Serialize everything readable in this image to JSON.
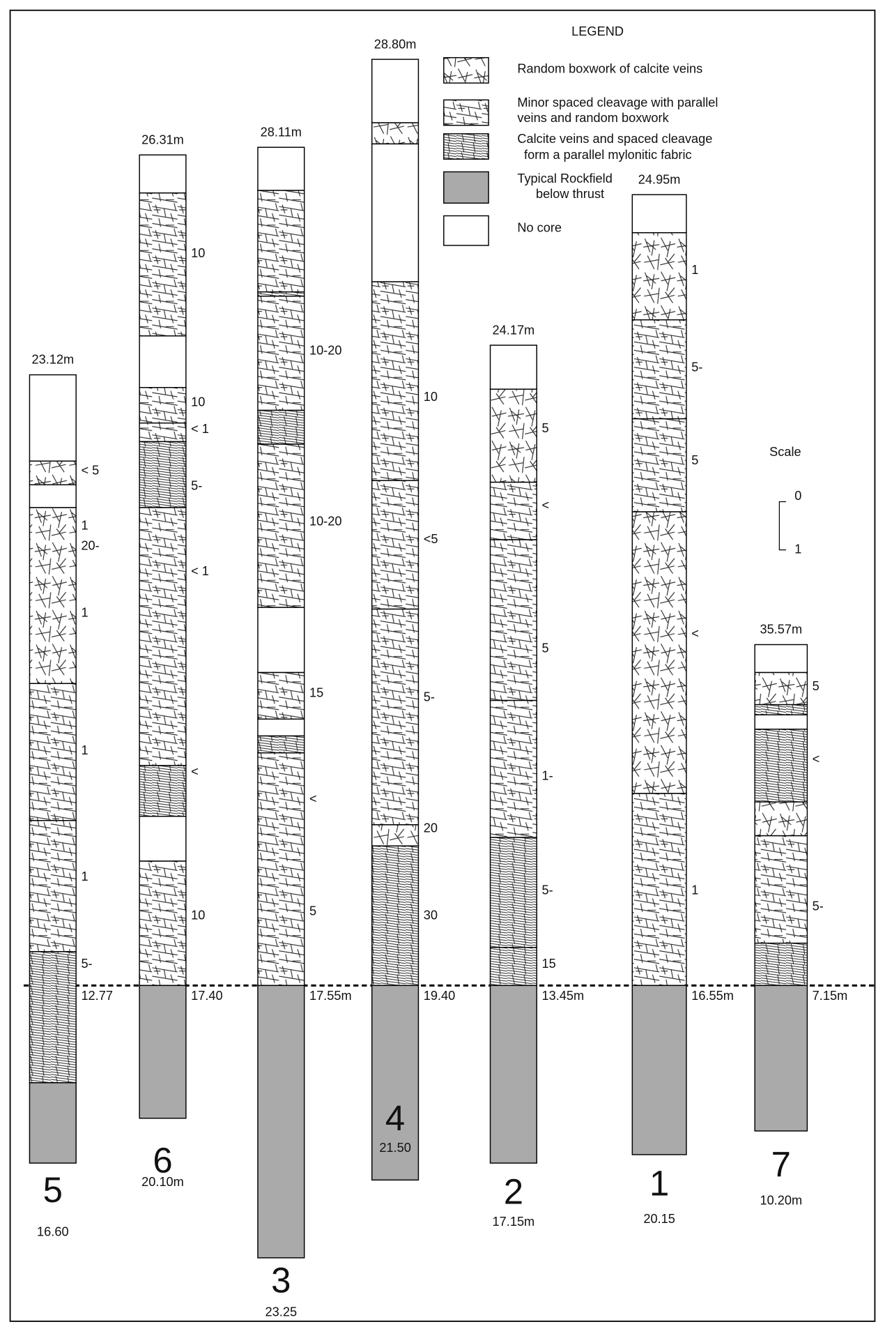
{
  "legend": {
    "title": "LEGEND",
    "items": [
      [
        "Random boxwork of calcite veins"
      ],
      [
        "Minor spaced cleavage with parallel",
        "veins and random boxwork"
      ],
      [
        "Calcite veins and spaced cleavage",
        "form a parallel mylonitic fabric"
      ],
      [
        "Typical Rockfield",
        "below thrust"
      ],
      [
        "No core"
      ]
    ]
  },
  "scale": {
    "title": "Scale",
    "top": "0",
    "bottom": "1"
  },
  "columns": [
    {
      "top_label": "23.12m",
      "annotations": [
        "< 5",
        "1",
        "20-",
        "1",
        "1",
        "1",
        "5-"
      ],
      "thrust_label": "12.77",
      "number": "5",
      "bottom_label": "16.60"
    },
    {
      "top_label": "26.31m",
      "annotations": [
        "10",
        "10",
        "< 1",
        "5-",
        "< 1",
        "<",
        "10"
      ],
      "thrust_label": "17.40",
      "number": "6",
      "bottom_label": "20.10m"
    },
    {
      "top_label": "28.11m",
      "annotations": [
        "10-20",
        "10-20",
        "15",
        "<",
        "5"
      ],
      "thrust_label": "17.55m",
      "number": "3",
      "bottom_label": "23.25"
    },
    {
      "top_label": "28.80m",
      "annotations": [
        "10",
        "<5",
        "5-",
        "20",
        "30"
      ],
      "thrust_label": "19.40",
      "number": "4",
      "bottom_label": "21.50"
    },
    {
      "top_label": "24.17m",
      "annotations": [
        "5",
        "<",
        "5",
        "1-",
        "5-",
        "15"
      ],
      "thrust_label": "13.45m",
      "number": "2",
      "bottom_label": "17.15m"
    },
    {
      "top_label": "24.95m",
      "annotations": [
        "1",
        "5-",
        "5",
        "<",
        "1"
      ],
      "thrust_label": "16.55m",
      "number": "1",
      "bottom_label": "20.15"
    },
    {
      "top_label": "35.57m",
      "annotations": [
        "5",
        "<",
        "5-"
      ],
      "thrust_label": "7.15m",
      "number": "7",
      "bottom_label": "10.20m"
    }
  ]
}
